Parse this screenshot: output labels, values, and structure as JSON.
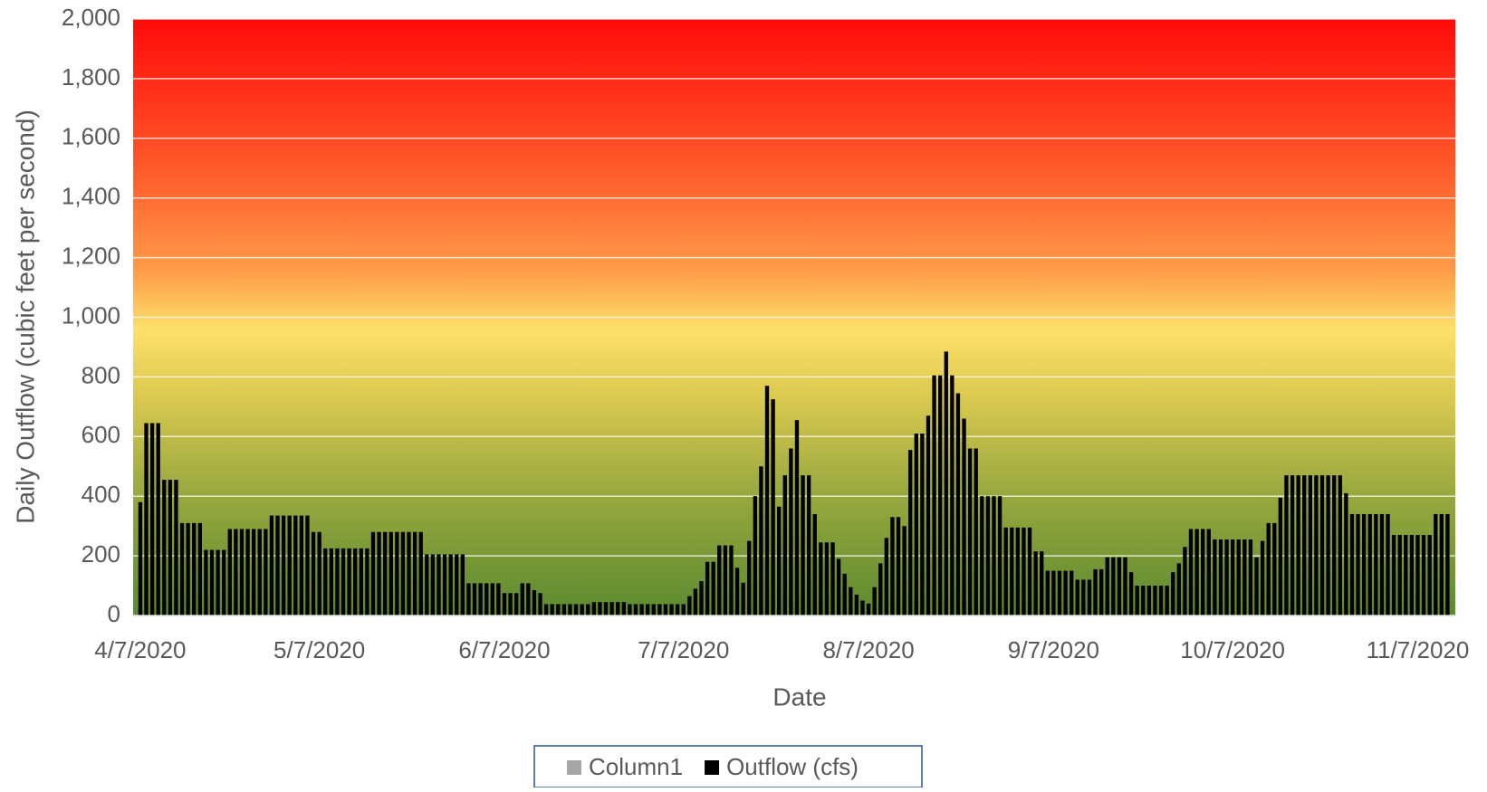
{
  "chart_data": {
    "type": "bar",
    "x_label": "Date",
    "y_label": "Daily Outflow (cubic feet per second)",
    "ylim": [
      0,
      2000
    ],
    "yticks": [
      0,
      {
        "value": 200,
        "label": "200"
      },
      {
        "value": 400,
        "label": "400"
      },
      {
        "value": 600,
        "label": "600"
      },
      {
        "value": 800,
        "label": "800"
      },
      {
        "value": 1000,
        "label": "1,000"
      },
      {
        "value": 1200,
        "label": "1,200"
      },
      {
        "value": 1400,
        "label": "1,400"
      },
      {
        "value": 1600,
        "label": "1,600"
      },
      {
        "value": 1800,
        "label": "1,800"
      },
      {
        "value": 2000,
        "label": "2,000"
      }
    ],
    "grid": true,
    "legend": "bottom",
    "categories": [
      "4/7/2020",
      null,
      null,
      null,
      null,
      null,
      null,
      null,
      null,
      null,
      null,
      null,
      null,
      null,
      null,
      null,
      null,
      null,
      null,
      null,
      null,
      null,
      null,
      null,
      null,
      null,
      null,
      null,
      null,
      null,
      "5/7/2020",
      null,
      null,
      null,
      null,
      null,
      null,
      null,
      null,
      null,
      null,
      null,
      null,
      null,
      null,
      null,
      null,
      null,
      null,
      null,
      null,
      null,
      null,
      null,
      null,
      null,
      null,
      null,
      null,
      null,
      null,
      "6/7/2020",
      null,
      null,
      null,
      null,
      null,
      null,
      null,
      null,
      null,
      null,
      null,
      null,
      null,
      null,
      null,
      null,
      null,
      null,
      null,
      null,
      null,
      null,
      null,
      null,
      null,
      null,
      null,
      null,
      null,
      "7/7/2020",
      null,
      null,
      null,
      null,
      null,
      null,
      null,
      null,
      null,
      null,
      null,
      null,
      null,
      null,
      null,
      null,
      null,
      null,
      null,
      null,
      null,
      null,
      null,
      null,
      null,
      null,
      null,
      null,
      null,
      null,
      "8/7/2020",
      null,
      null,
      null,
      null,
      null,
      null,
      null,
      null,
      null,
      null,
      null,
      null,
      null,
      null,
      null,
      null,
      null,
      null,
      null,
      null,
      null,
      null,
      null,
      null,
      null,
      null,
      null,
      null,
      null,
      null,
      "9/7/2020",
      null,
      null,
      null,
      null,
      null,
      null,
      null,
      null,
      null,
      null,
      null,
      null,
      null,
      null,
      null,
      null,
      null,
      null,
      null,
      null,
      null,
      null,
      null,
      null,
      null,
      null,
      null,
      null,
      null,
      "10/7/2020",
      null,
      null,
      null,
      null,
      null,
      null,
      null,
      null,
      null,
      null,
      null,
      null,
      null,
      null,
      null,
      null,
      null,
      null,
      null,
      null,
      null,
      null,
      null,
      null,
      null,
      null,
      null,
      null,
      null,
      null,
      "11/7/2020",
      null,
      null,
      null,
      null,
      null
    ],
    "series": [
      {
        "name": "Column1",
        "color": "#a5a5a5"
      },
      {
        "name": "Outflow (cfs)",
        "color": "#000000",
        "values": [
          380,
          645,
          645,
          645,
          455,
          455,
          455,
          310,
          310,
          310,
          310,
          220,
          220,
          220,
          220,
          290,
          290,
          290,
          290,
          290,
          290,
          290,
          335,
          335,
          335,
          335,
          335,
          335,
          335,
          280,
          280,
          225,
          225,
          225,
          225,
          225,
          225,
          225,
          225,
          280,
          280,
          280,
          280,
          280,
          280,
          280,
          280,
          280,
          205,
          205,
          205,
          205,
          205,
          205,
          205,
          108,
          108,
          108,
          108,
          108,
          108,
          75,
          75,
          75,
          108,
          108,
          85,
          75,
          38,
          38,
          38,
          38,
          38,
          38,
          38,
          38,
          45,
          45,
          45,
          45,
          45,
          45,
          38,
          38,
          38,
          38,
          38,
          38,
          38,
          38,
          38,
          38,
          65,
          90,
          115,
          180,
          180,
          235,
          235,
          235,
          160,
          110,
          250,
          400,
          500,
          770,
          725,
          365,
          470,
          560,
          655,
          470,
          470,
          340,
          245,
          245,
          245,
          190,
          140,
          95,
          70,
          50,
          40,
          95,
          175,
          260,
          330,
          330,
          300,
          555,
          610,
          610,
          670,
          805,
          805,
          885,
          805,
          745,
          660,
          560,
          560,
          400,
          400,
          400,
          400,
          295,
          295,
          295,
          295,
          295,
          215,
          215,
          150,
          150,
          150,
          150,
          150,
          120,
          120,
          120,
          155,
          155,
          195,
          195,
          195,
          195,
          145,
          100,
          100,
          100,
          100,
          100,
          100,
          145,
          175,
          230,
          290,
          290,
          290,
          290,
          255,
          255,
          255,
          255,
          255,
          255,
          255,
          195,
          250,
          310,
          310,
          395,
          470,
          470,
          470,
          470,
          470,
          470,
          470,
          470,
          470,
          470,
          410,
          340,
          340,
          340,
          340,
          340,
          340,
          340,
          270,
          270,
          270,
          270,
          270,
          270,
          270,
          340,
          340,
          340
        ]
      }
    ]
  }
}
